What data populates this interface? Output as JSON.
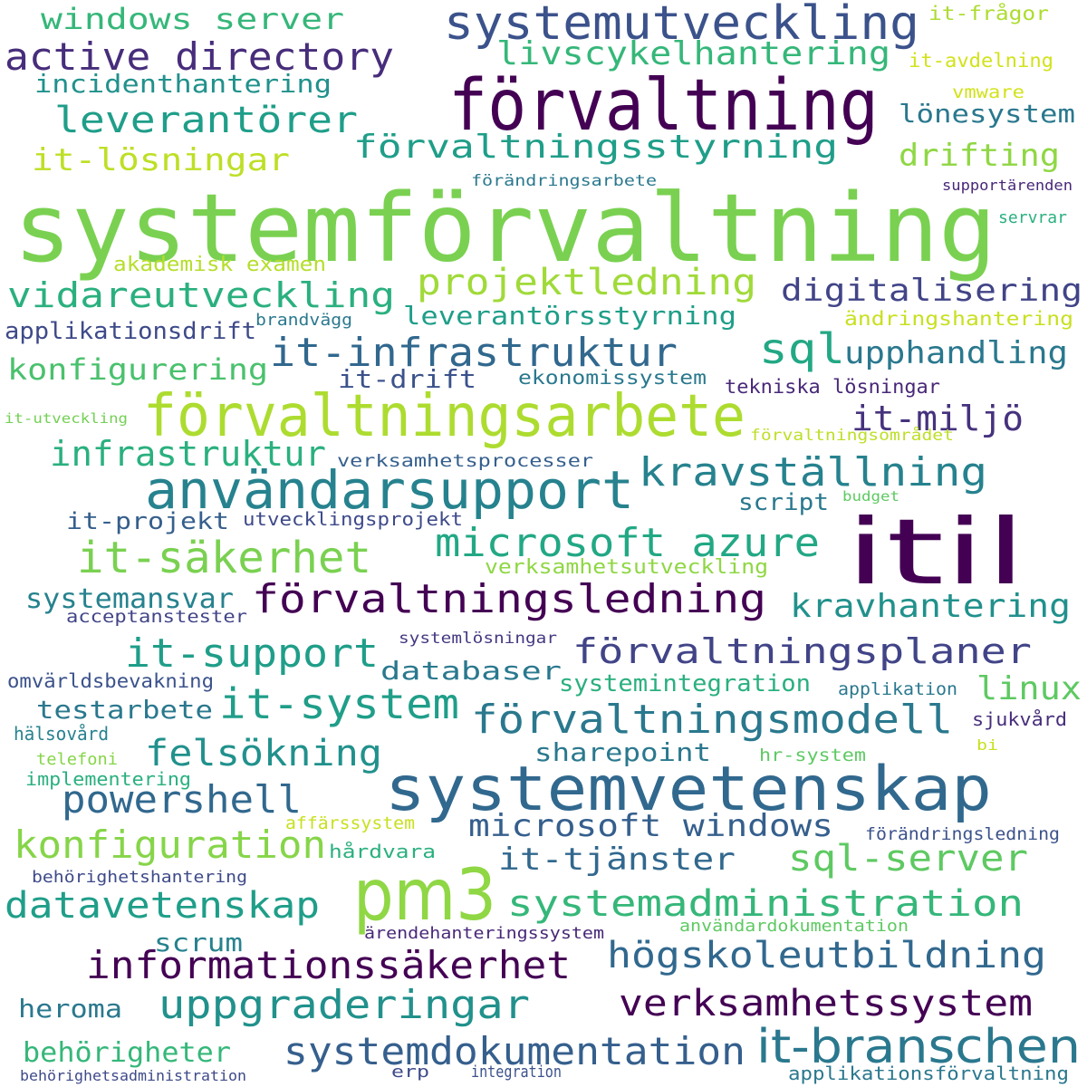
{
  "words": [
    {
      "text": "systemförvaltning",
      "color": "#7ad151"
    },
    {
      "text": "förvaltning",
      "color": "#440154"
    },
    {
      "text": "systemutveckling",
      "color": "#3b528b"
    },
    {
      "text": "itil",
      "color": "#440154"
    },
    {
      "text": "förvaltningsarbete",
      "color": "#addc30"
    },
    {
      "text": "användarsupport",
      "color": "#26828e"
    },
    {
      "text": "systemvetenskap",
      "color": "#31688e"
    },
    {
      "text": "pm3",
      "color": "#8fd744"
    },
    {
      "text": "windows server",
      "color": "#35b779"
    },
    {
      "text": "active directory",
      "color": "#472d7b"
    },
    {
      "text": "livscykelhantering",
      "color": "#35b779"
    },
    {
      "text": "incidenthantering",
      "color": "#21918c"
    },
    {
      "text": "leverantörer",
      "color": "#1f9e89"
    },
    {
      "text": "förvaltningsstyrning",
      "color": "#1f9e89"
    },
    {
      "text": "it-lösningar",
      "color": "#bddf26"
    },
    {
      "text": "drifting",
      "color": "#8fd744"
    },
    {
      "text": "lönesystem",
      "color": "#2a788e"
    },
    {
      "text": "it-frågor",
      "color": "#addc30"
    },
    {
      "text": "it-avdelning",
      "color": "#d2e21b"
    },
    {
      "text": "vmware",
      "color": "#d2e21b"
    },
    {
      "text": "förändringsarbete",
      "color": "#2a788e"
    },
    {
      "text": "supportärenden",
      "color": "#482878"
    },
    {
      "text": "servrar",
      "color": "#2ab07f"
    },
    {
      "text": "akademisk examen",
      "color": "#b5de2b"
    },
    {
      "text": "projektledning",
      "color": "#a0da39"
    },
    {
      "text": "vidareutveckling",
      "color": "#2ab07f"
    },
    {
      "text": "digitalisering",
      "color": "#414487"
    },
    {
      "text": "applikationsdrift",
      "color": "#3e4a89"
    },
    {
      "text": "brandvägg",
      "color": "#2a788e"
    },
    {
      "text": "leverantörsstyrning",
      "color": "#1f9e89"
    },
    {
      "text": "ändringshantering",
      "color": "#c8e020"
    },
    {
      "text": "it-infrastruktur",
      "color": "#31688e"
    },
    {
      "text": "sql",
      "color": "#22a884"
    },
    {
      "text": "upphandling",
      "color": "#2a788e"
    },
    {
      "text": "konfigurering",
      "color": "#4ac16d"
    },
    {
      "text": "it-drift",
      "color": "#3b528b"
    },
    {
      "text": "ekonomissystem",
      "color": "#2a788e"
    },
    {
      "text": "tekniska lösningar",
      "color": "#482878"
    },
    {
      "text": "it-utveckling",
      "color": "#73d056"
    },
    {
      "text": "it-miljö",
      "color": "#46327e"
    },
    {
      "text": "förvaltningsområdet",
      "color": "#bddf26"
    },
    {
      "text": "infrastruktur",
      "color": "#2ab07f"
    },
    {
      "text": "verksamhetsprocesser",
      "color": "#355f8d"
    },
    {
      "text": "kravställning",
      "color": "#26828e"
    },
    {
      "text": "script",
      "color": "#2a788e"
    },
    {
      "text": "budget",
      "color": "#5ec962"
    },
    {
      "text": "it-projekt",
      "color": "#355f8d"
    },
    {
      "text": "utvecklingsprojekt",
      "color": "#3e4a89"
    },
    {
      "text": "it-säkerhet",
      "color": "#7ad151"
    },
    {
      "text": "microsoft azure",
      "color": "#22a884"
    },
    {
      "text": "verksamhetsutveckling",
      "color": "#8fd744"
    },
    {
      "text": "systemansvar",
      "color": "#26828e"
    },
    {
      "text": "förvaltningsledning",
      "color": "#440154"
    },
    {
      "text": "kravhantering",
      "color": "#21918c"
    },
    {
      "text": "acceptanstester",
      "color": "#414487"
    },
    {
      "text": "systemlösningar",
      "color": "#453781"
    },
    {
      "text": "it-support",
      "color": "#1f9e89"
    },
    {
      "text": "förvaltningsplaner",
      "color": "#414487"
    },
    {
      "text": "databaser",
      "color": "#2a788e"
    },
    {
      "text": "omvärldsbevakning",
      "color": "#3b528b"
    },
    {
      "text": "it-system",
      "color": "#1f9e89"
    },
    {
      "text": "testarbete",
      "color": "#2a788e"
    },
    {
      "text": "systemintegration",
      "color": "#2ab07f"
    },
    {
      "text": "applikation",
      "color": "#2a788e"
    },
    {
      "text": "linux",
      "color": "#5ec962"
    },
    {
      "text": "förvaltningsmodell",
      "color": "#2a788e"
    },
    {
      "text": "hälsovård",
      "color": "#26828e"
    },
    {
      "text": "felsökning",
      "color": "#21918c"
    },
    {
      "text": "sjukvård",
      "color": "#472d7b"
    },
    {
      "text": "telefoni",
      "color": "#86d549"
    },
    {
      "text": "sharepoint",
      "color": "#2a788e"
    },
    {
      "text": "hr-system",
      "color": "#5ec962"
    },
    {
      "text": "bi",
      "color": "#c8e020"
    },
    {
      "text": "implementering",
      "color": "#2ab07f"
    },
    {
      "text": "powershell",
      "color": "#31688e"
    },
    {
      "text": "microsoft windows",
      "color": "#355f8d"
    },
    {
      "text": "affärssystem",
      "color": "#c8e020"
    },
    {
      "text": "förändringsledning",
      "color": "#3b528b"
    },
    {
      "text": "konfiguration",
      "color": "#86d549"
    },
    {
      "text": "hårdvara",
      "color": "#2ab07f"
    },
    {
      "text": "it-tjänster",
      "color": "#31688e"
    },
    {
      "text": "sql-server",
      "color": "#5ec962"
    },
    {
      "text": "behörighetshantering",
      "color": "#3e4a89"
    },
    {
      "text": "datavetenskap",
      "color": "#1f9e89"
    },
    {
      "text": "systemadministration",
      "color": "#35b779"
    },
    {
      "text": "scrum",
      "color": "#26828e"
    },
    {
      "text": "ärendehanteringssystem",
      "color": "#482878"
    },
    {
      "text": "användardokumentation",
      "color": "#5ec962"
    },
    {
      "text": "informationssäkerhet",
      "color": "#440154"
    },
    {
      "text": "högskoleutbildning",
      "color": "#31688e"
    },
    {
      "text": "uppgraderingar",
      "color": "#21918c"
    },
    {
      "text": "verksamhetssystem",
      "color": "#440154"
    },
    {
      "text": "heroma",
      "color": "#2a788e"
    },
    {
      "text": "systemdokumentation",
      "color": "#355f8d"
    },
    {
      "text": "it-branschen",
      "color": "#2a788e"
    },
    {
      "text": "behörigheter",
      "color": "#35b779"
    },
    {
      "text": "behörighetsadministration",
      "color": "#3e4a89"
    },
    {
      "text": "erp",
      "color": "#3e4a89"
    },
    {
      "text": "integration",
      "color": "#3b528b"
    },
    {
      "text": "applikationsförvaltning",
      "color": "#2a788e"
    }
  ]
}
